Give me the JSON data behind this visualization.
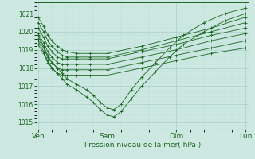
{
  "bg_color": "#cce8e0",
  "grid_major_color": "#aacccc",
  "grid_minor_color": "#bbdddd",
  "line_color": "#1a6620",
  "marker": "+",
  "xlabel": "Pression niveau de la mer( hPa )",
  "xlabel_color": "#1a6620",
  "tick_color": "#1a6620",
  "spine_color": "#1a6620",
  "ylim": [
    1014.6,
    1021.6
  ],
  "yticks": [
    1015,
    1016,
    1017,
    1018,
    1019,
    1020,
    1021
  ],
  "xtick_labels": [
    "Ven",
    "Sam",
    "Dim",
    "Lun"
  ],
  "xtick_positions": [
    0,
    1,
    2,
    3
  ],
  "series_x": [
    [
      0.0,
      0.08,
      0.14,
      0.2,
      0.28,
      0.35,
      0.42,
      0.55,
      0.75,
      1.0,
      1.5,
      2.0,
      2.5,
      3.0
    ],
    [
      0.0,
      0.08,
      0.14,
      0.2,
      0.28,
      0.35,
      0.42,
      0.55,
      0.75,
      1.0,
      1.5,
      2.0,
      2.5,
      3.0
    ],
    [
      0.0,
      0.08,
      0.14,
      0.2,
      0.28,
      0.35,
      0.42,
      0.55,
      0.75,
      1.0,
      1.5,
      2.0,
      2.5,
      3.0
    ],
    [
      0.0,
      0.08,
      0.14,
      0.2,
      0.28,
      0.35,
      0.42,
      0.55,
      0.75,
      1.0,
      1.5,
      2.0,
      2.5,
      3.0
    ],
    [
      0.0,
      0.08,
      0.14,
      0.2,
      0.28,
      0.35,
      0.42,
      0.55,
      0.75,
      1.0,
      1.5,
      2.0,
      2.5,
      3.0
    ],
    [
      0.0,
      0.08,
      0.14,
      0.2,
      0.28,
      0.35,
      0.42,
      0.55,
      0.75,
      1.0,
      1.5,
      2.0,
      2.5,
      3.0
    ],
    [
      0.0,
      0.08,
      0.14,
      0.2,
      0.28,
      0.35,
      0.42,
      0.55,
      0.7,
      0.8,
      0.9,
      1.0,
      1.1,
      1.2,
      1.35,
      1.5,
      1.7,
      1.9,
      2.1,
      2.4,
      2.7,
      3.0
    ],
    [
      0.0,
      0.08,
      0.14,
      0.2,
      0.28,
      0.35,
      0.42,
      0.55,
      0.7,
      0.8,
      0.9,
      1.0,
      1.1,
      1.2,
      1.35,
      1.5,
      1.7,
      1.9,
      2.1,
      2.4,
      2.7,
      3.0
    ]
  ],
  "series_y": [
    [
      1020.8,
      1020.3,
      1019.8,
      1019.5,
      1019.2,
      1019.0,
      1018.9,
      1018.8,
      1018.8,
      1018.8,
      1019.2,
      1019.7,
      1020.2,
      1020.8
    ],
    [
      1020.5,
      1020.0,
      1019.5,
      1019.2,
      1018.9,
      1018.7,
      1018.6,
      1018.6,
      1018.6,
      1018.6,
      1019.0,
      1019.5,
      1020.0,
      1020.5
    ],
    [
      1020.2,
      1019.7,
      1019.2,
      1018.9,
      1018.6,
      1018.5,
      1018.5,
      1018.5,
      1018.5,
      1018.5,
      1018.9,
      1019.3,
      1019.8,
      1020.2
    ],
    [
      1019.9,
      1019.4,
      1018.9,
      1018.6,
      1018.3,
      1018.2,
      1018.2,
      1018.2,
      1018.2,
      1018.2,
      1018.6,
      1019.0,
      1019.5,
      1019.9
    ],
    [
      1019.6,
      1019.1,
      1018.6,
      1018.3,
      1018.0,
      1017.9,
      1017.9,
      1017.9,
      1017.9,
      1017.9,
      1018.3,
      1018.7,
      1019.1,
      1019.5
    ],
    [
      1019.3,
      1018.8,
      1018.3,
      1018.0,
      1017.7,
      1017.6,
      1017.6,
      1017.6,
      1017.6,
      1017.6,
      1018.0,
      1018.4,
      1018.8,
      1019.1
    ],
    [
      1019.8,
      1019.2,
      1018.7,
      1018.3,
      1018.0,
      1017.7,
      1017.4,
      1017.1,
      1016.8,
      1016.5,
      1016.1,
      1015.8,
      1015.7,
      1016.0,
      1016.8,
      1017.5,
      1018.3,
      1019.1,
      1019.8,
      1020.5,
      1021.0,
      1021.3
    ],
    [
      1019.5,
      1018.9,
      1018.4,
      1018.0,
      1017.7,
      1017.4,
      1017.1,
      1016.8,
      1016.4,
      1016.1,
      1015.7,
      1015.4,
      1015.3,
      1015.6,
      1016.3,
      1017.0,
      1017.8,
      1018.6,
      1019.3,
      1020.0,
      1020.6,
      1021.0
    ]
  ]
}
